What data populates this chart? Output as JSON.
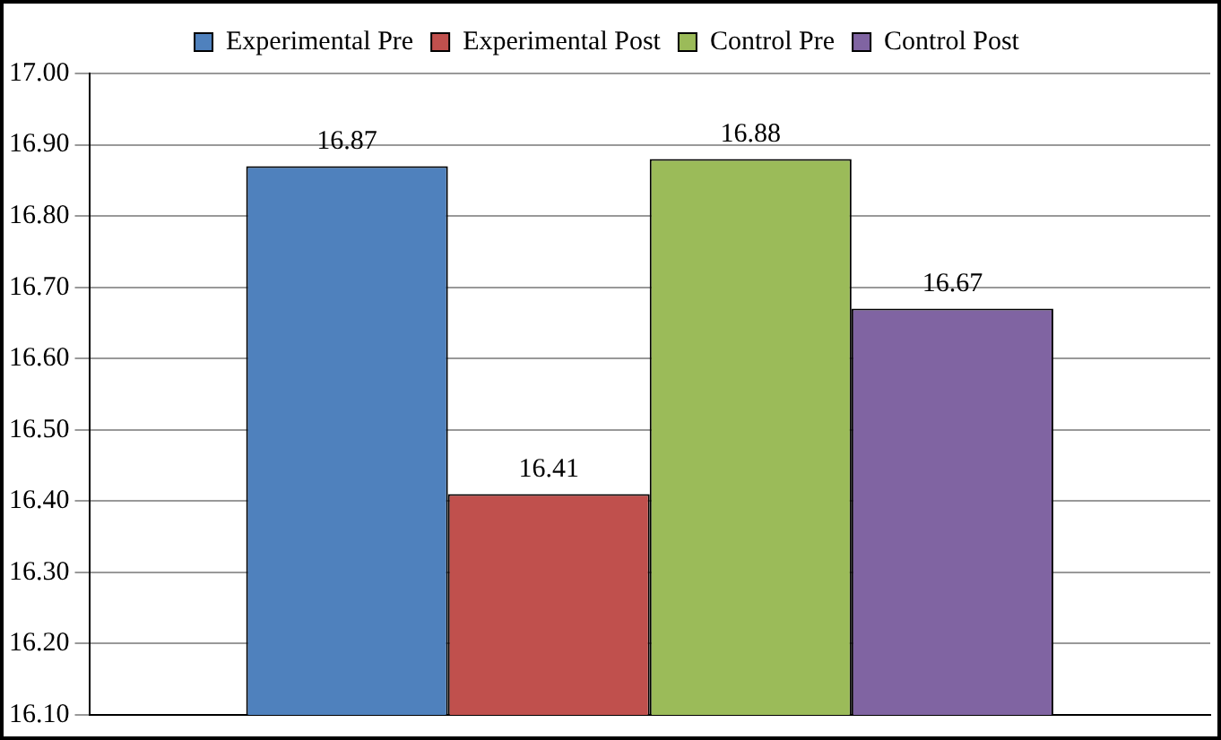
{
  "chart_data": {
    "type": "bar",
    "categories": [
      null
    ],
    "series": [
      {
        "name": "Experimental Pre",
        "color": "#4f81bd",
        "values": [
          16.87
        ]
      },
      {
        "name": "Experimental Post",
        "color": "#c0504d",
        "values": [
          16.41
        ]
      },
      {
        "name": "Control Pre",
        "color": "#9bbb59",
        "values": [
          16.88
        ]
      },
      {
        "name": "Control Post",
        "color": "#8064a2",
        "values": [
          16.67
        ]
      }
    ],
    "ylim": [
      16.1,
      17.0
    ],
    "yticks": [
      {
        "value": 16.1,
        "label": "16.10"
      },
      {
        "value": 16.2,
        "label": "16.20"
      },
      {
        "value": 16.3,
        "label": "16.30"
      },
      {
        "value": 16.4,
        "label": "16.40"
      },
      {
        "value": 16.5,
        "label": "16.50"
      },
      {
        "value": 16.6,
        "label": "16.60"
      },
      {
        "value": 16.7,
        "label": "16.70"
      },
      {
        "value": 16.8,
        "label": "16.80"
      },
      {
        "value": 16.9,
        "label": "16.90"
      },
      {
        "value": 17.0,
        "label": "17.00"
      }
    ],
    "grid": "y",
    "legend": "top",
    "data_labels": true
  }
}
